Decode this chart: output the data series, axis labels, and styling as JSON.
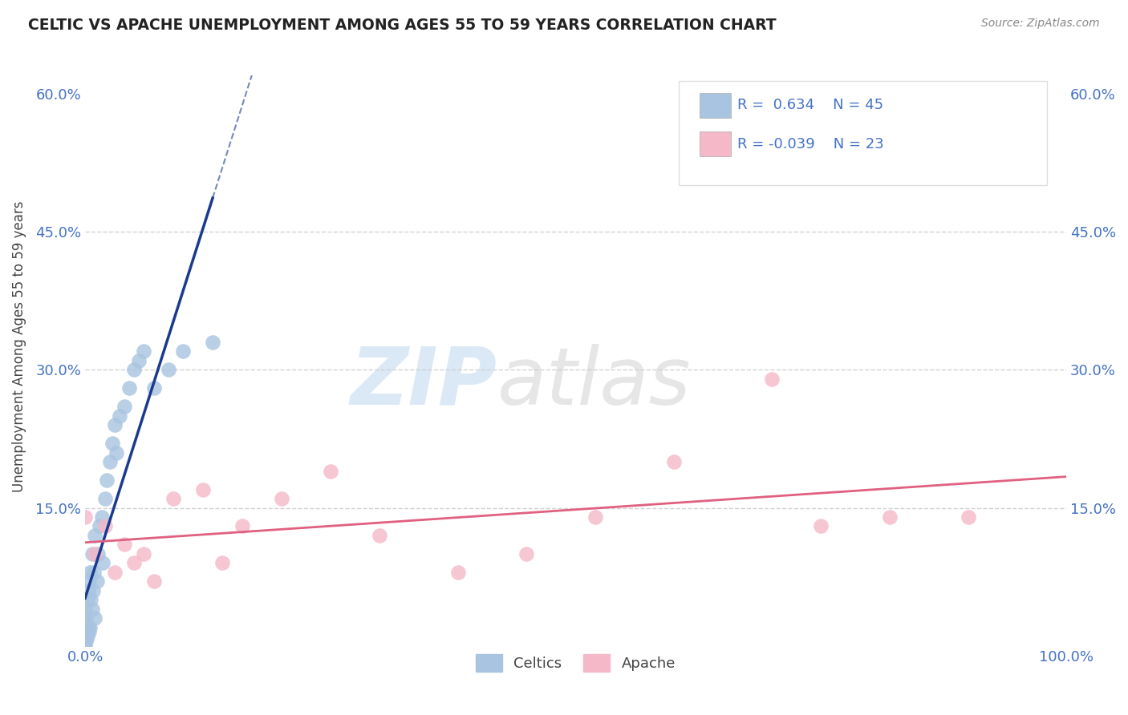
{
  "title": "CELTIC VS APACHE UNEMPLOYMENT AMONG AGES 55 TO 59 YEARS CORRELATION CHART",
  "source": "Source: ZipAtlas.com",
  "ylabel": "Unemployment Among Ages 55 to 59 years",
  "xlim": [
    0.0,
    1.0
  ],
  "ylim": [
    0.0,
    0.65
  ],
  "yticks": [
    0.0,
    0.15,
    0.3,
    0.45,
    0.6
  ],
  "yticklabels": [
    "",
    "15.0%",
    "30.0%",
    "45.0%",
    "60.0%"
  ],
  "celtics_r": 0.634,
  "celtics_n": 45,
  "apache_r": -0.039,
  "apache_n": 23,
  "celtics_color": "#a8c4e0",
  "apache_color": "#f4b8c8",
  "celtics_line_color": "#1a3a8f",
  "apache_line_color": "#e06080",
  "legend_text_color": "#4472c4",
  "background_color": "#ffffff",
  "watermark_zip": "ZIP",
  "watermark_atlas": "atlas",
  "grid_color": "#cccccc",
  "celtics_x": [
    0.0,
    0.0,
    0.0,
    0.0,
    0.0,
    0.0,
    0.0,
    0.001,
    0.001,
    0.002,
    0.002,
    0.003,
    0.003,
    0.004,
    0.004,
    0.005,
    0.005,
    0.006,
    0.007,
    0.007,
    0.008,
    0.009,
    0.01,
    0.01,
    0.012,
    0.013,
    0.015,
    0.017,
    0.018,
    0.02,
    0.022,
    0.025,
    0.028,
    0.03,
    0.032,
    0.035,
    0.04,
    0.045,
    0.05,
    0.055,
    0.06,
    0.07,
    0.085,
    0.1,
    0.13
  ],
  "celtics_y": [
    0.0,
    0.005,
    0.01,
    0.015,
    0.02,
    0.025,
    0.04,
    0.005,
    0.03,
    0.01,
    0.05,
    0.02,
    0.06,
    0.015,
    0.07,
    0.02,
    0.08,
    0.05,
    0.04,
    0.1,
    0.06,
    0.08,
    0.03,
    0.12,
    0.07,
    0.1,
    0.13,
    0.14,
    0.09,
    0.16,
    0.18,
    0.2,
    0.22,
    0.24,
    0.21,
    0.25,
    0.26,
    0.28,
    0.3,
    0.31,
    0.32,
    0.28,
    0.3,
    0.32,
    0.33
  ],
  "apache_x": [
    0.0,
    0.01,
    0.02,
    0.03,
    0.04,
    0.05,
    0.06,
    0.07,
    0.09,
    0.12,
    0.14,
    0.16,
    0.2,
    0.25,
    0.3,
    0.38,
    0.45,
    0.52,
    0.6,
    0.7,
    0.75,
    0.82,
    0.9
  ],
  "apache_y": [
    0.14,
    0.1,
    0.13,
    0.08,
    0.11,
    0.09,
    0.1,
    0.07,
    0.16,
    0.17,
    0.09,
    0.13,
    0.16,
    0.19,
    0.12,
    0.08,
    0.1,
    0.14,
    0.2,
    0.29,
    0.13,
    0.14,
    0.14
  ]
}
